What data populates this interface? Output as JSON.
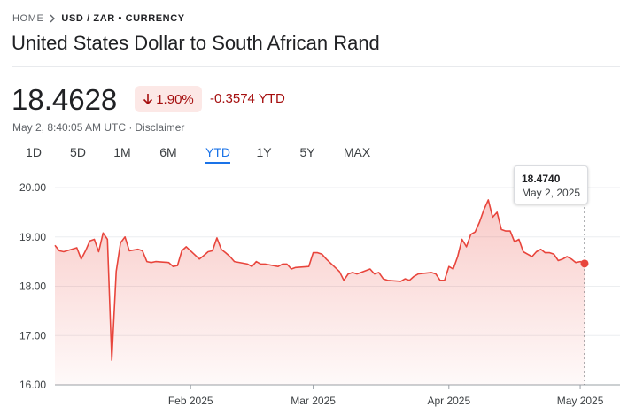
{
  "breadcrumb": {
    "home": "HOME",
    "current": "USD / ZAR • CURRENCY"
  },
  "title": "United States Dollar to South African Rand",
  "price": "18.4628",
  "change_percent": "1.90%",
  "change_value": "-0.3574 YTD",
  "timestamp": "May 2, 8:40:05 AM UTC ·",
  "disclaimer": "Disclaimer",
  "ranges": [
    "1D",
    "5D",
    "1M",
    "6M",
    "YTD",
    "1Y",
    "5Y",
    "MAX"
  ],
  "selected_range": "YTD",
  "tooltip": {
    "value": "18.4740",
    "date": "May 2, 2025"
  },
  "chart_data": {
    "type": "area",
    "color": "#e8453c",
    "x": [
      1,
      2,
      3,
      6,
      7,
      8,
      9,
      10,
      11,
      12,
      13,
      14,
      15,
      16,
      17,
      18,
      20,
      21,
      22,
      23,
      24,
      27,
      28,
      29,
      30,
      31,
      34,
      35,
      36,
      37,
      38,
      39,
      40,
      41,
      42,
      45,
      46,
      47,
      48,
      49,
      52,
      53,
      54,
      55,
      56,
      59,
      60,
      61,
      62,
      63,
      66,
      67,
      68,
      69,
      70,
      73,
      74,
      75,
      76,
      77,
      80,
      81,
      82,
      83,
      84,
      87,
      88,
      89,
      90,
      91,
      92,
      93,
      94,
      95,
      96,
      97,
      98,
      99,
      100,
      101,
      102,
      103,
      104,
      105,
      106,
      107,
      108,
      109,
      110,
      111,
      112,
      113,
      114,
      115,
      116,
      117,
      118,
      119,
      120,
      121,
      122
    ],
    "values": [
      18.83,
      18.72,
      18.7,
      18.78,
      18.55,
      18.72,
      18.92,
      18.95,
      18.7,
      19.08,
      18.95,
      16.5,
      18.3,
      18.88,
      19.0,
      18.72,
      18.75,
      18.72,
      18.5,
      18.48,
      18.5,
      18.48,
      18.4,
      18.42,
      18.72,
      18.8,
      18.55,
      18.62,
      18.7,
      18.72,
      18.98,
      18.75,
      18.68,
      18.6,
      18.5,
      18.45,
      18.4,
      18.5,
      18.45,
      18.45,
      18.4,
      18.45,
      18.45,
      18.35,
      18.38,
      18.4,
      18.68,
      18.68,
      18.65,
      18.55,
      18.3,
      18.12,
      18.25,
      18.28,
      18.25,
      18.35,
      18.25,
      18.28,
      18.15,
      18.12,
      18.1,
      18.15,
      18.12,
      18.2,
      18.25,
      18.28,
      18.25,
      18.12,
      18.12,
      18.4,
      18.35,
      18.6,
      18.95,
      18.8,
      19.05,
      19.1,
      19.3,
      19.55,
      19.75,
      19.4,
      19.5,
      19.15,
      19.12,
      19.12,
      18.9,
      18.95,
      18.7,
      18.65,
      18.6,
      18.7,
      18.75,
      18.68,
      18.68,
      18.65,
      18.52,
      18.55,
      18.6,
      18.55,
      18.48,
      18.5,
      18.46
    ],
    "xlim": [
      1,
      122
    ],
    "xticks": [
      {
        "value": 32,
        "label": "Feb 2025"
      },
      {
        "value": 60,
        "label": "Mar 2025"
      },
      {
        "value": 91,
        "label": "Apr 2025"
      },
      {
        "value": 121,
        "label": "May 2025"
      }
    ],
    "ylim": [
      16,
      20
    ],
    "yticks": [
      {
        "value": 16,
        "label": "16.00"
      },
      {
        "value": 17,
        "label": "17.00"
      },
      {
        "value": 18,
        "label": "18.00"
      },
      {
        "value": 19,
        "label": "19.00"
      },
      {
        "value": 20,
        "label": "20.00"
      }
    ],
    "grid": true
  }
}
